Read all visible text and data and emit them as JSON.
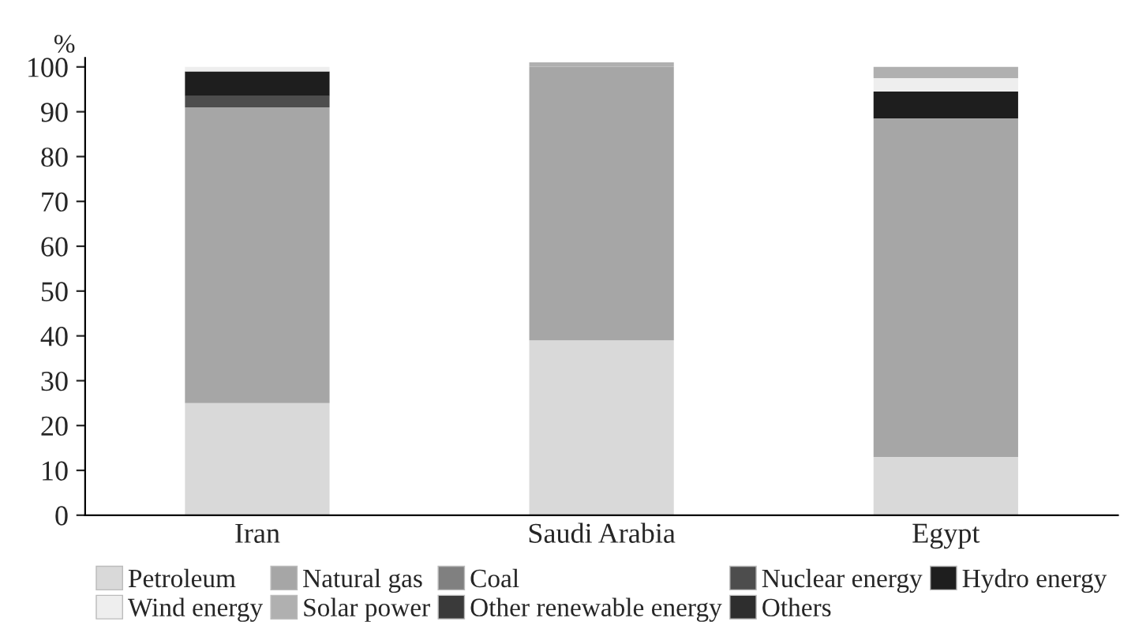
{
  "chart_data": {
    "type": "bar",
    "stacked": true,
    "ylabel": "%",
    "categories": [
      "Iran",
      "Saudi Arabia",
      "Egypt"
    ],
    "series": [
      {
        "name": "Petroleum",
        "color": "#d9d9d9",
        "values": [
          25,
          39,
          13
        ]
      },
      {
        "name": "Natural gas",
        "color": "#a6a6a6",
        "values": [
          66,
          61,
          75.5
        ]
      },
      {
        "name": "Coal",
        "color": "#808080",
        "values": [
          0,
          0,
          0
        ]
      },
      {
        "name": "Nuclear energy",
        "color": "#4d4d4d",
        "values": [
          2.5,
          0,
          0
        ]
      },
      {
        "name": "Hydro energy",
        "color": "#1e1e1e",
        "values": [
          5.5,
          0,
          6
        ]
      },
      {
        "name": "Wind energy",
        "color": "#eeeeee",
        "values": [
          1,
          0,
          3
        ]
      },
      {
        "name": "Solar power",
        "color": "#b0b0b0",
        "values": [
          0,
          1,
          2.5
        ]
      },
      {
        "name": "Other renewable energy",
        "color": "#3a3a3a",
        "values": [
          0,
          0,
          0
        ]
      },
      {
        "name": "Others",
        "color": "#2e2e2e",
        "values": [
          0,
          0,
          0
        ]
      }
    ],
    "ylim": [
      0,
      102
    ],
    "yticks": [
      0,
      10,
      20,
      30,
      40,
      50,
      60,
      70,
      80,
      90,
      100
    ],
    "grid": false,
    "legend": "bottom"
  }
}
